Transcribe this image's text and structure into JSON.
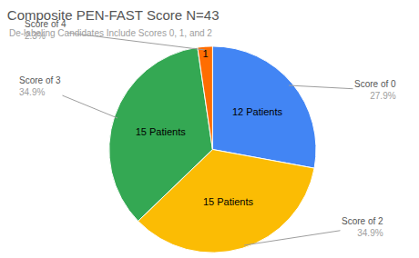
{
  "chart_data": {
    "type": "pie",
    "title": "Composite PEN-FAST Score N=43",
    "subtitle": "De-labeling Candidates Include Scores 0, 1, and 2",
    "categories": [
      "Score of 0",
      "Score of 2",
      "Score of 3",
      "Score of 4"
    ],
    "values": [
      12,
      15,
      15,
      1
    ],
    "value_labels": [
      "12 Patients",
      "15 Patients",
      "15 Patients",
      "1"
    ],
    "percentages": [
      {
        "value": 27.9,
        "label": "27.9%"
      },
      {
        "value": 34.9,
        "label": "34.9%"
      },
      {
        "value": 34.9,
        "label": "34.9%"
      },
      {
        "value": 2.3,
        "label": "2.3%"
      }
    ],
    "colors": [
      "#4285f4",
      "#fbbc04",
      "#34a853",
      "#ff6d01"
    ],
    "data_labels": true
  }
}
